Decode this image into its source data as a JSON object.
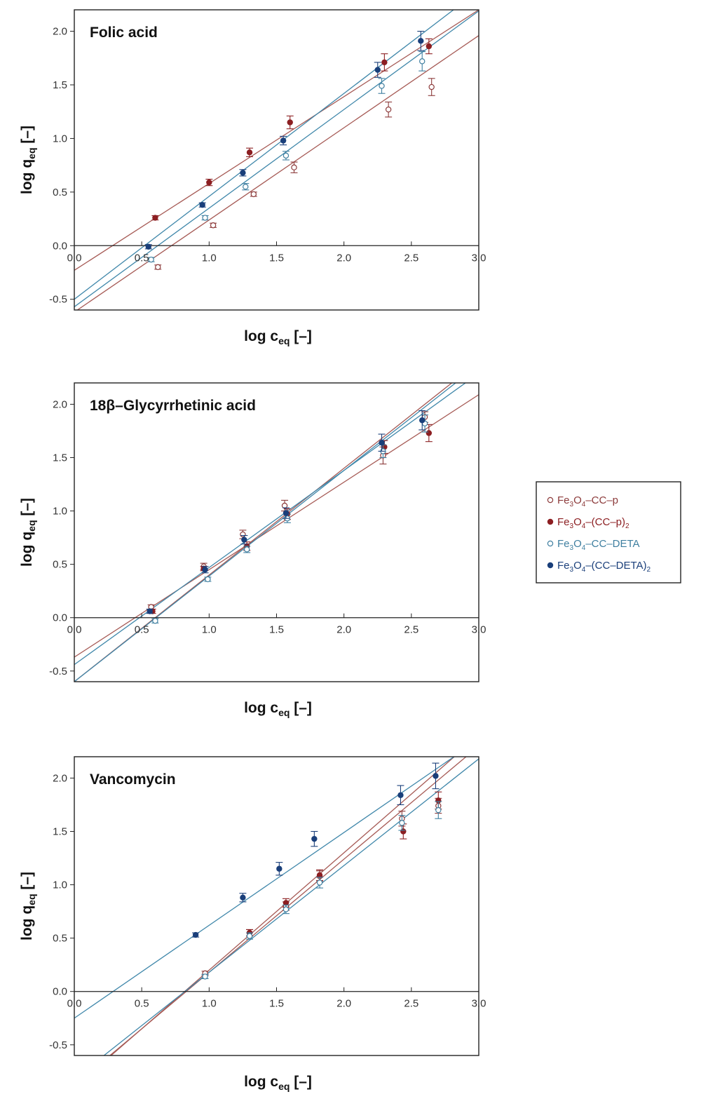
{
  "chart_data": [
    {
      "type": "scatter",
      "title": "Folic acid",
      "xlabel": "log c",
      "xlabel_sub": "eq",
      "xlabel_unit": "[–]",
      "ylabel": "log q",
      "ylabel_sub": "eq",
      "ylabel_unit": "[–]",
      "xlim": [
        0,
        3
      ],
      "ylim": [
        -0.6,
        2.2
      ],
      "xticks": [
        "0.0",
        "0.5",
        "1.0",
        "1.5",
        "2.0",
        "2.5",
        "3.0"
      ],
      "yticks": [
        "-0.5",
        "0.0",
        "0.5",
        "1.0",
        "1.5",
        "2.0"
      ],
      "series": [
        {
          "key": "s1",
          "x": [
            0.62,
            1.03,
            1.33,
            1.63,
            2.33,
            2.65
          ],
          "y": [
            -0.2,
            0.19,
            0.48,
            0.73,
            1.27,
            1.48
          ],
          "err": [
            0.02,
            0.02,
            0.02,
            0.05,
            0.07,
            0.08
          ],
          "fit": [
            -0.62,
            0.86
          ]
        },
        {
          "key": "s2",
          "x": [
            0.6,
            1.0,
            1.3,
            1.6,
            2.3,
            2.63
          ],
          "y": [
            0.26,
            0.59,
            0.87,
            1.15,
            1.71,
            1.86
          ],
          "err": [
            0.02,
            0.03,
            0.04,
            0.06,
            0.08,
            0.07
          ],
          "fit": [
            -0.23,
            0.81
          ]
        },
        {
          "key": "s3",
          "x": [
            0.57,
            0.97,
            1.27,
            1.57,
            2.28,
            2.58
          ],
          "y": [
            -0.13,
            0.26,
            0.55,
            0.84,
            1.49,
            1.72
          ],
          "err": [
            0.02,
            0.02,
            0.03,
            0.04,
            0.07,
            0.09
          ],
          "fit": [
            -0.57,
            0.92
          ]
        },
        {
          "key": "s4",
          "x": [
            0.55,
            0.95,
            1.25,
            1.55,
            2.25,
            2.57
          ],
          "y": [
            -0.01,
            0.38,
            0.68,
            0.98,
            1.64,
            1.91
          ],
          "err": [
            0.02,
            0.02,
            0.03,
            0.04,
            0.07,
            0.09
          ],
          "fit": [
            -0.5,
            0.96
          ]
        }
      ]
    },
    {
      "type": "scatter",
      "title": "18β–Glycyrrhetinic acid",
      "xlabel": "log c",
      "xlabel_sub": "eq",
      "xlabel_unit": "[–]",
      "ylabel": "log q",
      "ylabel_sub": "eq",
      "ylabel_unit": "[–]",
      "xlim": [
        0,
        3
      ],
      "ylim": [
        -0.6,
        2.2
      ],
      "xticks": [
        "0.0",
        "0.5",
        "1.0",
        "1.5",
        "2.0",
        "2.5",
        "3.0"
      ],
      "yticks": [
        "-0.5",
        "0.0",
        "0.5",
        "1.0",
        "1.5",
        "2.0"
      ],
      "series": [
        {
          "key": "s1",
          "x": [
            0.57,
            0.96,
            1.25,
            1.56,
            2.29,
            2.6
          ],
          "y": [
            0.1,
            0.48,
            0.78,
            1.05,
            1.52,
            1.88
          ],
          "err": [
            0.02,
            0.03,
            0.04,
            0.05,
            0.08,
            0.05
          ],
          "fit": [
            -0.37,
            0.82
          ]
        },
        {
          "key": "s2",
          "x": [
            0.58,
            0.96,
            1.28,
            1.58,
            2.3,
            2.63
          ],
          "y": [
            0.06,
            0.46,
            0.67,
            0.97,
            1.6,
            1.73
          ],
          "err": [
            0.02,
            0.02,
            0.04,
            0.05,
            0.06,
            0.08
          ],
          "fit": [
            -0.6,
            1.0
          ]
        },
        {
          "key": "s3",
          "x": [
            0.6,
            0.99,
            1.28,
            1.58,
            2.29,
            2.6
          ],
          "y": [
            -0.03,
            0.36,
            0.64,
            0.93,
            1.56,
            1.82
          ],
          "err": [
            0.02,
            0.02,
            0.03,
            0.04,
            0.06,
            0.08
          ],
          "fit": [
            -0.6,
            0.99
          ]
        },
        {
          "key": "s4",
          "x": [
            0.56,
            0.97,
            1.26,
            1.57,
            2.28,
            2.58
          ],
          "y": [
            0.06,
            0.45,
            0.73,
            0.98,
            1.64,
            1.85
          ],
          "err": [
            0.02,
            0.03,
            0.04,
            0.05,
            0.08,
            0.09
          ],
          "fit": [
            -0.44,
            0.91
          ]
        }
      ]
    },
    {
      "type": "scatter",
      "title": "Vancomycin",
      "xlabel": "log c",
      "xlabel_sub": "eq",
      "xlabel_unit": "[–]",
      "ylabel": "log q",
      "ylabel_sub": "eq",
      "ylabel_unit": "[–]",
      "xlim": [
        0,
        3
      ],
      "ylim": [
        -0.6,
        2.2
      ],
      "xticks": [
        "0.0",
        "0.5",
        "1.0",
        "1.5",
        "2.0",
        "2.5",
        "3.0"
      ],
      "yticks": [
        "-0.5",
        "0.0",
        "0.5",
        "1.0",
        "1.5",
        "2.0"
      ],
      "series": [
        {
          "key": "s1",
          "x": [
            0.97,
            1.3,
            1.57,
            1.82,
            2.43,
            2.7
          ],
          "y": [
            0.17,
            0.55,
            0.8,
            1.08,
            1.62,
            1.74
          ],
          "err": [
            0.02,
            0.03,
            0.04,
            0.05,
            0.07,
            0.07
          ],
          "fit": [
            -0.88,
            1.06
          ]
        },
        {
          "key": "s2",
          "x": [
            1.3,
            1.57,
            1.82,
            2.44,
            2.7
          ],
          "y": [
            0.55,
            0.83,
            1.09,
            1.5,
            1.79
          ],
          "err": [
            0.03,
            0.04,
            0.05,
            0.07,
            0.08
          ],
          "fit": [
            -0.9,
            1.1
          ]
        },
        {
          "key": "s3",
          "x": [
            0.97,
            1.3,
            1.57,
            1.82,
            2.43,
            2.7
          ],
          "y": [
            0.14,
            0.52,
            0.77,
            1.02,
            1.58,
            1.7
          ],
          "err": [
            0.02,
            0.03,
            0.04,
            0.05,
            0.07,
            0.08
          ],
          "fit": [
            -0.82,
            1.0
          ]
        },
        {
          "key": "s4",
          "x": [
            0.9,
            1.25,
            1.52,
            1.78,
            2.42,
            2.68
          ],
          "y": [
            0.53,
            0.88,
            1.15,
            1.43,
            1.84,
            2.02
          ],
          "err": [
            0.02,
            0.04,
            0.06,
            0.07,
            0.09,
            0.12
          ],
          "fit": [
            -0.25,
            0.87
          ]
        }
      ]
    }
  ],
  "legend": {
    "items": [
      {
        "key": "s1",
        "pre": "Fe",
        "sub1": "3",
        "mid": "O",
        "sub2": "4",
        "post": "–CC–p",
        "post_sub": "",
        "end": "",
        "marker": "open",
        "color": "#8c3a3a"
      },
      {
        "key": "s2",
        "pre": "Fe",
        "sub1": "3",
        "mid": "O",
        "sub2": "4",
        "post": "–(CC–p)",
        "post_sub": "2",
        "end": "",
        "marker": "filled",
        "color": "#8c1f22"
      },
      {
        "key": "s3",
        "pre": "Fe",
        "sub1": "3",
        "mid": "O",
        "sub2": "4",
        "post": "–CC–DETA",
        "post_sub": "",
        "end": "",
        "marker": "open",
        "color": "#3f7fa0"
      },
      {
        "key": "s4",
        "pre": "Fe",
        "sub1": "3",
        "mid": "O",
        "sub2": "4",
        "post": "–(CC–DETA)",
        "post_sub": "2",
        "end": "",
        "marker": "filled",
        "color": "#1a3f7a"
      }
    ]
  },
  "colors": {
    "s1": "#8c3a3a",
    "s2": "#8c1f22",
    "s3": "#3f7fa0",
    "s4": "#1a3f7a",
    "fit_red": "#a65a55",
    "fit_blue": "#3f87aa",
    "axis": "#222222"
  }
}
